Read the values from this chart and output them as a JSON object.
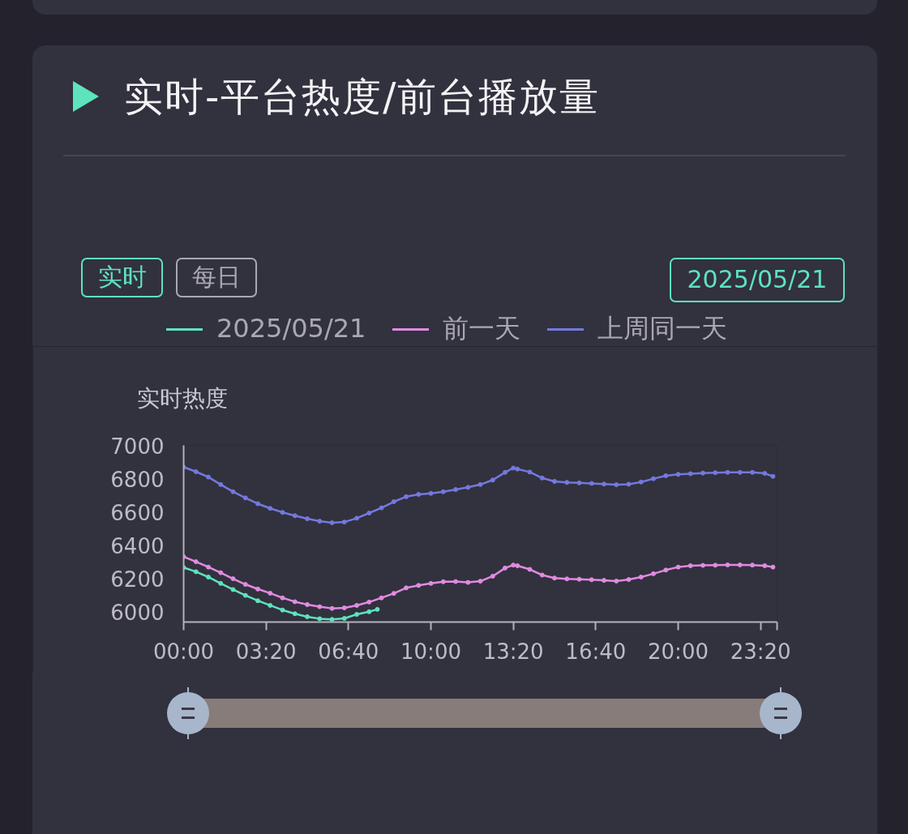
{
  "chart_data": {
    "type": "line",
    "title": "实时-平台热度/前台播放量",
    "annotations": [
      "实时",
      "每日",
      "2025/05/21"
    ],
    "ylabel": "实时热度",
    "xlim": [
      0,
      24
    ],
    "xticks": [
      {
        "value": 0,
        "label": "00:00"
      },
      {
        "value": 3.3333,
        "label": "03:20"
      },
      {
        "value": 6.6667,
        "label": "06:40"
      },
      {
        "value": 10,
        "label": "10:00"
      },
      {
        "value": 13.3333,
        "label": "13:20"
      },
      {
        "value": 16.6667,
        "label": "16:40"
      },
      {
        "value": 20,
        "label": "20:00"
      },
      {
        "value": 23.3333,
        "label": "23:20"
      },
      {
        "value": 24,
        "label": null
      }
    ],
    "ylim": [
      5940,
      7000
    ],
    "yticks": [
      6000,
      6200,
      6400,
      6600,
      6800,
      7000
    ],
    "legend": "top",
    "marker": "circle",
    "line_style": "solid",
    "series": [
      {
        "name": "2025/05/21",
        "color": "#5ee3bd",
        "x": [
          0,
          0.5,
          1,
          1.5,
          2,
          2.5,
          3,
          3.5,
          4,
          4.5,
          5,
          5.5,
          6,
          6.5,
          7,
          7.5,
          7.8333
        ],
        "values": [
          6267,
          6242,
          6210,
          6172,
          6135,
          6100,
          6068,
          6040,
          6012,
          5990,
          5972,
          5960,
          5956,
          5962,
          5986,
          6002,
          6016
        ]
      },
      {
        "name": "前一天",
        "color": "#e08be0",
        "x": [
          0,
          0.5,
          1,
          1.5,
          2,
          2.5,
          3,
          3.5,
          4,
          4.5,
          5,
          5.5,
          6,
          6.5,
          7,
          7.5,
          8,
          8.5,
          9,
          9.5,
          10,
          10.5,
          11,
          11.5,
          12,
          12.5,
          13,
          13.3333,
          13.5,
          14,
          14.5,
          15,
          15.5,
          16,
          16.5,
          17,
          17.5,
          18,
          18.5,
          19,
          19.5,
          20,
          20.5,
          21,
          21.5,
          22,
          22.5,
          23,
          23.5,
          23.8333
        ],
        "values": [
          6332,
          6302,
          6270,
          6236,
          6200,
          6166,
          6138,
          6113,
          6085,
          6062,
          6045,
          6032,
          6022,
          6025,
          6040,
          6060,
          6085,
          6112,
          6145,
          6160,
          6172,
          6182,
          6183,
          6178,
          6185,
          6215,
          6264,
          6282,
          6278,
          6256,
          6222,
          6204,
          6199,
          6197,
          6194,
          6190,
          6186,
          6195,
          6210,
          6230,
          6252,
          6270,
          6278,
          6280,
          6281,
          6283,
          6283,
          6282,
          6278,
          6270
        ]
      },
      {
        "name": "上周同一天",
        "color": "#7379dc",
        "x": [
          0,
          0.5,
          1,
          1.5,
          2,
          2.5,
          3,
          3.5,
          4,
          4.5,
          5,
          5.5,
          6,
          6.5,
          7,
          7.5,
          8,
          8.5,
          9,
          9.5,
          10,
          10.5,
          11,
          11.5,
          12,
          12.5,
          13,
          13.3333,
          13.5,
          14,
          14.5,
          15,
          15.5,
          16,
          16.5,
          17,
          17.5,
          18,
          18.5,
          19,
          19.5,
          20,
          20.5,
          21,
          21.5,
          22,
          22.5,
          23,
          23.5,
          23.8333
        ],
        "values": [
          6870,
          6842,
          6810,
          6765,
          6722,
          6685,
          6650,
          6622,
          6598,
          6578,
          6560,
          6545,
          6536,
          6540,
          6563,
          6594,
          6625,
          6662,
          6692,
          6706,
          6712,
          6722,
          6735,
          6748,
          6765,
          6792,
          6838,
          6864,
          6858,
          6840,
          6804,
          6784,
          6778,
          6775,
          6772,
          6768,
          6764,
          6767,
          6780,
          6800,
          6818,
          6826,
          6830,
          6834,
          6836,
          6838,
          6838,
          6838,
          6832,
          6814
        ]
      }
    ]
  }
}
